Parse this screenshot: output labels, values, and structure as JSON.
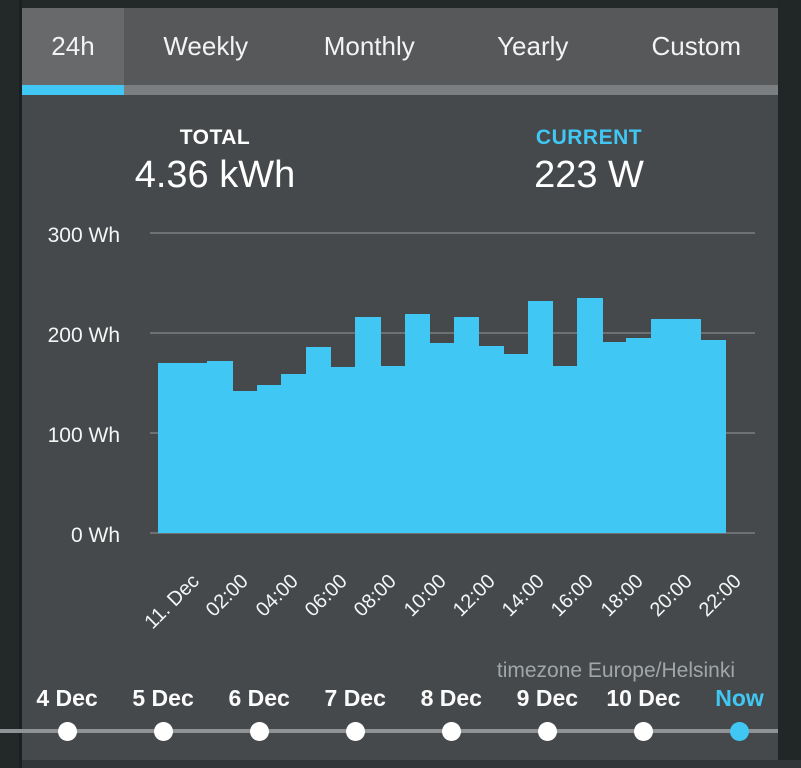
{
  "theme": {
    "accent": "#40c7f4",
    "panel_bg": "#46494b",
    "tabbar_bg": "#56585a",
    "selected_tab_bg": "#67696b",
    "gridline_color": "#6d7173"
  },
  "tabs": [
    {
      "label": "24h",
      "selected": true
    },
    {
      "label": "Weekly",
      "selected": false
    },
    {
      "label": "Monthly",
      "selected": false
    },
    {
      "label": "Yearly",
      "selected": false
    },
    {
      "label": "Custom",
      "selected": false
    }
  ],
  "summary": {
    "total_label": "TOTAL",
    "total_value": "4.36 kWh",
    "current_label": "CURRENT",
    "current_value": "223 W"
  },
  "chart_data": {
    "type": "bar",
    "unit": "Wh",
    "ylim": [
      0,
      300
    ],
    "y_ticks": [
      0,
      100,
      200,
      300
    ],
    "y_tick_labels": [
      "0 Wh",
      "100 Wh",
      "200 Wh",
      "300 Wh"
    ],
    "x_tick_labels": [
      "11. Dec",
      "02:00",
      "04:00",
      "06:00",
      "08:00",
      "10:00",
      "12:00",
      "14:00",
      "16:00",
      "18:00",
      "20:00",
      "22:00"
    ],
    "bar_hours": [
      "00:00",
      "01:00",
      "02:00",
      "03:00",
      "04:00",
      "05:00",
      "06:00",
      "07:00",
      "08:00",
      "09:00",
      "10:00",
      "11:00",
      "12:00",
      "13:00",
      "14:00",
      "15:00",
      "16:00",
      "17:00",
      "18:00",
      "19:00",
      "20:00",
      "21:00",
      "22:00"
    ],
    "values_wh": [
      170,
      170,
      172,
      142,
      148,
      159,
      186,
      166,
      216,
      167,
      219,
      190,
      216,
      187,
      179,
      232,
      167,
      235,
      191,
      195,
      214,
      214,
      193
    ],
    "bar_color": "#40c7f4",
    "grid": "horizontal",
    "legend": "none"
  },
  "footer": {
    "timezone_note": "timezone Europe/Helsinki",
    "date_items": [
      {
        "label": "4 Dec",
        "active": false
      },
      {
        "label": "5 Dec",
        "active": false
      },
      {
        "label": "6 Dec",
        "active": false
      },
      {
        "label": "7 Dec",
        "active": false
      },
      {
        "label": "8 Dec",
        "active": false
      },
      {
        "label": "9 Dec",
        "active": false
      },
      {
        "label": "10 Dec",
        "active": false
      },
      {
        "label": "Now",
        "active": true
      }
    ]
  }
}
